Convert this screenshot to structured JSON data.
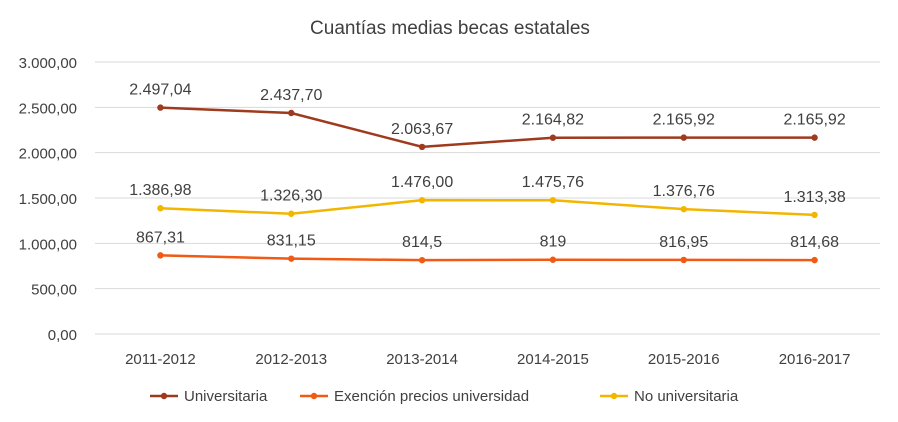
{
  "chart_data": {
    "type": "line",
    "title": "Cuantías medias becas estatales",
    "categories": [
      "2011-2012",
      "2012-2013",
      "2013-2014",
      "2014-2015",
      "2015-2016",
      "2016-2017"
    ],
    "ylim": [
      0,
      3000
    ],
    "yticks": [
      0,
      500,
      1000,
      1500,
      2000,
      2500,
      3000
    ],
    "ytick_labels": [
      "0,00",
      "500,00",
      "1.000,00",
      "1.500,00",
      "2.000,00",
      "2.500,00",
      "3.000,00"
    ],
    "grid": true,
    "legend_position": "bottom",
    "series": [
      {
        "name": "Universitaria",
        "color": "#9E3A1E",
        "values": [
          2497.04,
          2437.7,
          2063.67,
          2164.82,
          2165.92,
          2165.92
        ],
        "labels": [
          "2.497,04",
          "2.437,70",
          "2.063,67",
          "2.164,82",
          "2.165,92",
          "2.165,92"
        ]
      },
      {
        "name": "Exención precios universidad",
        "color": "#F05A14",
        "values": [
          867.31,
          831.15,
          814.5,
          819,
          816.95,
          814.68
        ],
        "labels": [
          "867,31",
          "831,15",
          "814,5",
          "819",
          "816,95",
          "814,68"
        ]
      },
      {
        "name": "No universitaria",
        "color": "#F2B600",
        "values": [
          1386.98,
          1326.3,
          1476.0,
          1475.76,
          1376.76,
          1313.38
        ],
        "labels": [
          "1.386,98",
          "1.326,30",
          "1.476,00",
          "1.475,76",
          "1.376,76",
          "1.313,38"
        ]
      }
    ]
  }
}
